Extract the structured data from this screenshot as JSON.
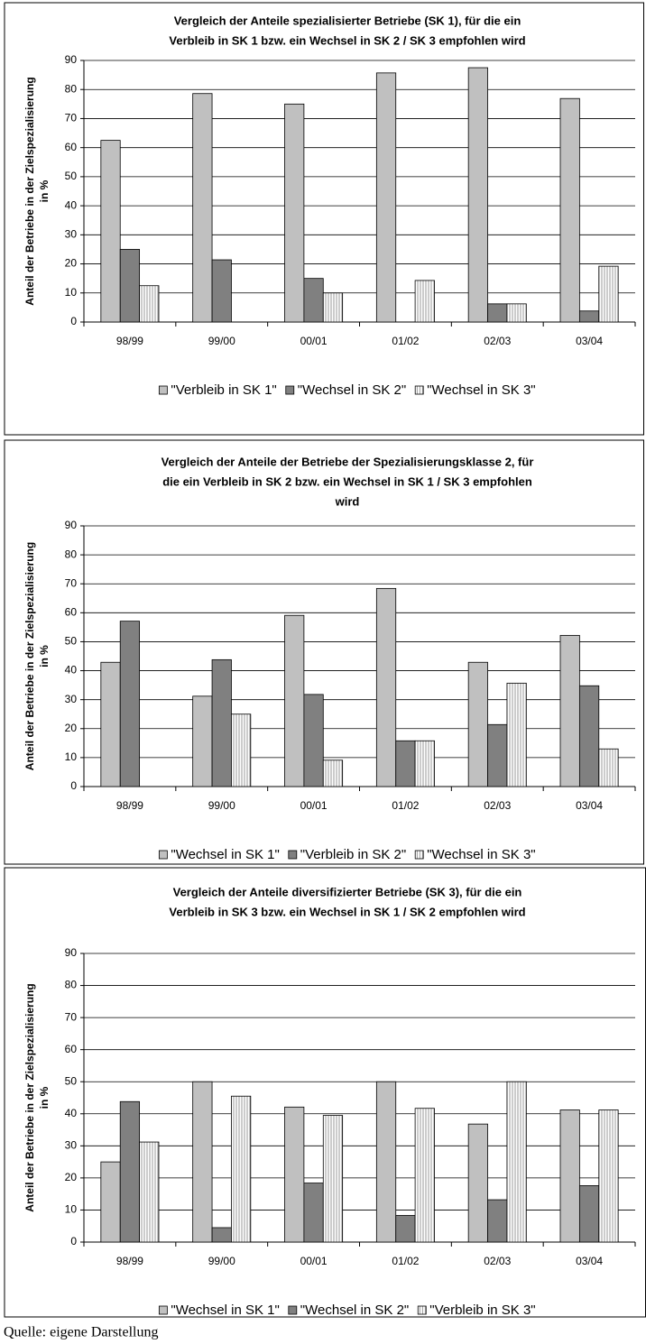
{
  "chart_data": [
    {
      "type": "bar",
      "title": [
        "Vergleich der Anteile spezialisierter Betriebe (SK 1), für die ein",
        "Verbleib in SK 1 bzw. ein Wechsel in SK 2 / SK 3 empfohlen wird"
      ],
      "y_label": [
        "Anteil der Betriebe in der Zielspezialisierung",
        "in %"
      ],
      "categories": [
        "98/99",
        "99/00",
        "00/01",
        "01/02",
        "02/03",
        "03/04"
      ],
      "series": [
        {
          "name": "\"Verbleib in SK 1\"",
          "color": "#c0c0c0",
          "values": [
            62.5,
            78.6,
            75,
            85.7,
            87.5,
            76.9
          ]
        },
        {
          "name": "\"Wechsel in SK 2\"",
          "color": "#808080",
          "values": [
            25,
            21.4,
            15,
            0,
            6.25,
            3.8
          ]
        },
        {
          "name": "\"Wechsel in SK 3\"",
          "color": "#ffffff",
          "pattern": "vertical-lines",
          "values": [
            12.5,
            0,
            10,
            14.3,
            6.25,
            19.2
          ]
        }
      ],
      "ylim": [
        0,
        90
      ],
      "yticks": [
        0,
        10,
        20,
        30,
        40,
        50,
        60,
        70,
        80,
        90
      ],
      "grid": true,
      "legend": "bottom"
    },
    {
      "type": "bar",
      "title": [
        "Vergleich der Anteile der Betriebe der Spezialisierungsklasse 2, für",
        "die ein Verbleib in SK 2 bzw. ein Wechsel in SK 1 / SK 3 empfohlen",
        "wird"
      ],
      "y_label": [
        "Anteil der Betriebe in der Zielspezialisierung",
        "in %"
      ],
      "categories": [
        "98/99",
        "99/00",
        "00/01",
        "01/02",
        "02/03",
        "03/04"
      ],
      "series": [
        {
          "name": "\"Wechsel in SK 1\"",
          "color": "#c0c0c0",
          "values": [
            42.9,
            31.2,
            59.1,
            68.4,
            42.9,
            52.2
          ]
        },
        {
          "name": "\"Verbleib in SK 2\"",
          "color": "#808080",
          "values": [
            57.1,
            43.8,
            31.8,
            15.8,
            21.4,
            34.8
          ]
        },
        {
          "name": "\"Wechsel in SK 3\"",
          "color": "#ffffff",
          "pattern": "vertical-lines",
          "values": [
            0,
            25,
            9.1,
            15.8,
            35.7,
            13
          ]
        }
      ],
      "ylim": [
        0,
        90
      ],
      "yticks": [
        0,
        10,
        20,
        30,
        40,
        50,
        60,
        70,
        80,
        90
      ],
      "grid": true,
      "legend": "bottom"
    },
    {
      "type": "bar",
      "title": [
        "Vergleich der Anteile diversifizierter Betriebe (SK 3), für die ein",
        "Verbleib in SK 3 bzw. ein Wechsel in SK 1 / SK 2 empfohlen wird"
      ],
      "y_label": [
        "Anteil der Betriebe in der Zielspezialisierung",
        "in %"
      ],
      "categories": [
        "98/99",
        "99/00",
        "00/01",
        "01/02",
        "02/03",
        "03/04"
      ],
      "series": [
        {
          "name": "\"Wechsel in SK 1\"",
          "color": "#c0c0c0",
          "values": [
            25,
            50,
            42.1,
            50,
            36.8,
            41.2
          ]
        },
        {
          "name": "\"Wechsel in SK 2\"",
          "color": "#808080",
          "values": [
            43.8,
            4.5,
            18.4,
            8.3,
            13.2,
            17.6
          ]
        },
        {
          "name": "\"Verbleib in SK 3\"",
          "color": "#ffffff",
          "pattern": "vertical-lines",
          "values": [
            31.2,
            45.5,
            39.5,
            41.7,
            50,
            41.2
          ]
        }
      ],
      "ylim": [
        0,
        90
      ],
      "yticks": [
        0,
        10,
        20,
        30,
        40,
        50,
        60,
        70,
        80,
        90
      ],
      "grid": true,
      "legend": "bottom"
    }
  ],
  "source": "Quelle: eigene Darstellung"
}
